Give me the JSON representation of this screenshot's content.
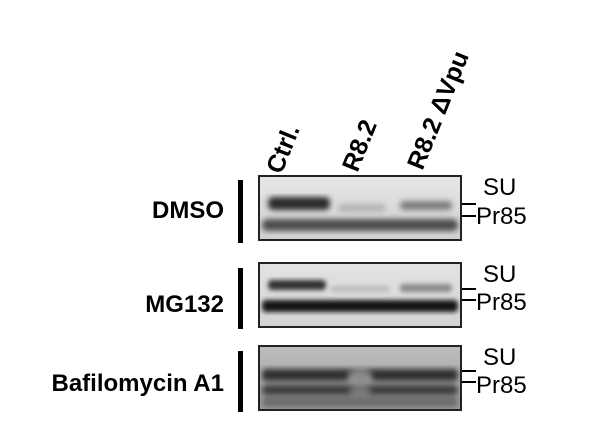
{
  "lanes": [
    "Ctrl.",
    "R8.2",
    "R8.2 ΔVpu"
  ],
  "panels": [
    {
      "condition": "DMSO",
      "markers": [
        "SU",
        "Pr85"
      ]
    },
    {
      "condition": "MG132",
      "markers": [
        "SU",
        "Pr85"
      ]
    },
    {
      "condition": "Bafilomycin A1",
      "markers": [
        "SU",
        "Pr85"
      ]
    }
  ]
}
